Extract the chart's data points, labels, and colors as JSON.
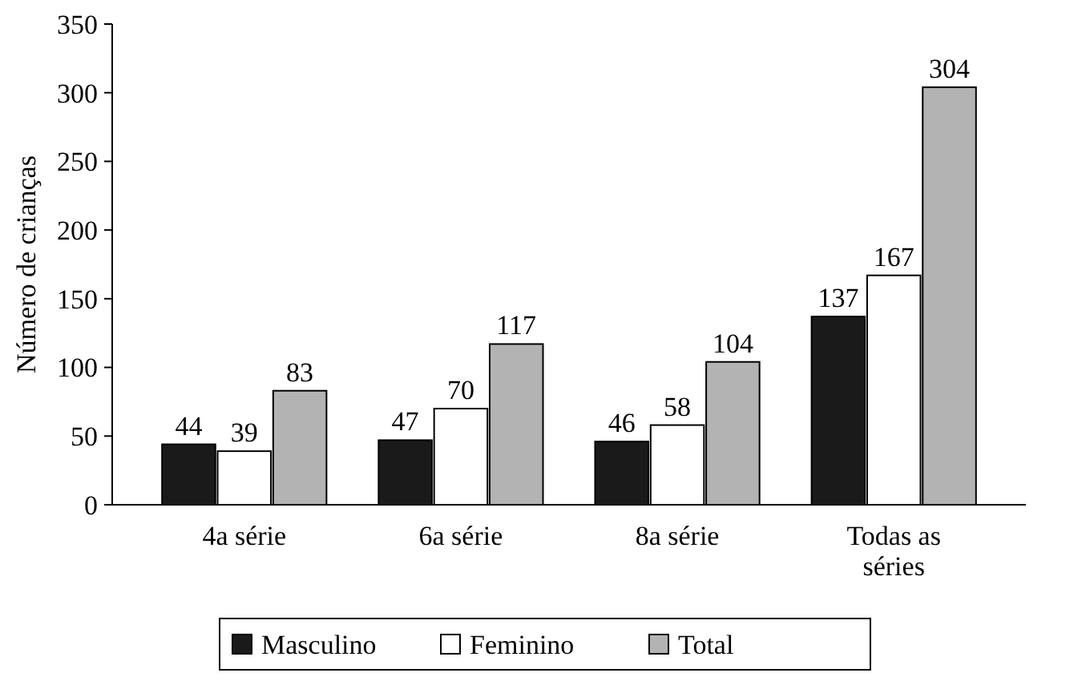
{
  "chart_data": {
    "type": "bar",
    "ylabel": "Número de crianças",
    "categories": [
      "4a série",
      "6a série",
      "8a série",
      "Todas as séries"
    ],
    "series": [
      {
        "name": "Masculino",
        "color": "#1a1a1a",
        "values": [
          44,
          47,
          46,
          137
        ]
      },
      {
        "name": "Feminino",
        "color": "#ffffff",
        "values": [
          39,
          70,
          58,
          167
        ]
      },
      {
        "name": "Total",
        "color": "#b3b3b3",
        "values": [
          83,
          117,
          104,
          304
        ]
      }
    ],
    "ylim": [
      0,
      350
    ],
    "yticks": [
      0,
      50,
      100,
      150,
      200,
      250,
      300,
      350
    ],
    "data_labels": true,
    "legend": "bottom",
    "grid": false
  }
}
